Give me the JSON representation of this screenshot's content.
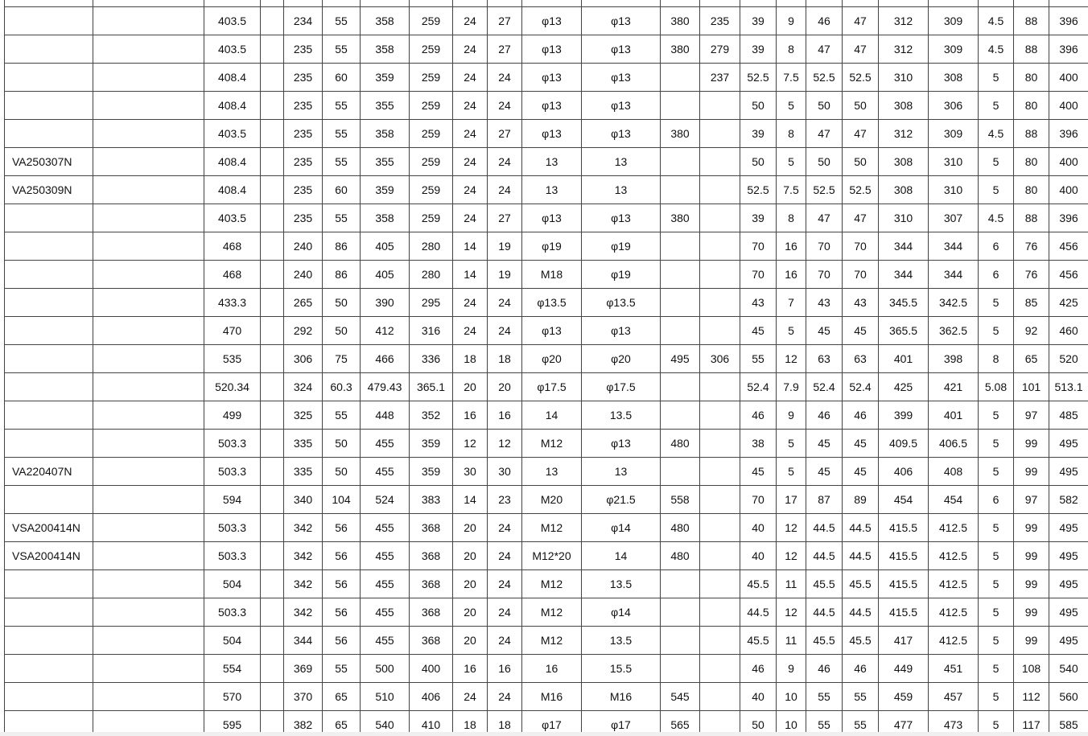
{
  "table": {
    "rows": [
      [
        null,
        null,
        "403.5",
        null,
        "234",
        "55",
        "358",
        "259",
        "24",
        "27",
        "φ13",
        "φ13",
        "380",
        "235",
        "39",
        "9",
        "46",
        "47",
        "312",
        "309",
        "4.5",
        "88",
        "396"
      ],
      [
        null,
        null,
        "403.5",
        null,
        "235",
        "55",
        "358",
        "259",
        "24",
        "27",
        "φ13",
        "φ13",
        "380",
        "279",
        "39",
        "8",
        "47",
        "47",
        "312",
        "309",
        "4.5",
        "88",
        "396"
      ],
      [
        null,
        null,
        "408.4",
        null,
        "235",
        "60",
        "359",
        "259",
        "24",
        "24",
        "φ13",
        "φ13",
        null,
        "237",
        "52.5",
        "7.5",
        "52.5",
        "52.5",
        "310",
        "308",
        "5",
        "80",
        "400"
      ],
      [
        null,
        null,
        "408.4",
        null,
        "235",
        "55",
        "355",
        "259",
        "24",
        "24",
        "φ13",
        "φ13",
        null,
        null,
        "50",
        "5",
        "50",
        "50",
        "308",
        "306",
        "5",
        "80",
        "400"
      ],
      [
        null,
        null,
        "403.5",
        null,
        "235",
        "55",
        "358",
        "259",
        "24",
        "27",
        "φ13",
        "φ13",
        "380",
        null,
        "39",
        "8",
        "47",
        "47",
        "312",
        "309",
        "4.5",
        "88",
        "396"
      ],
      [
        "VA250307N",
        null,
        "408.4",
        null,
        "235",
        "55",
        "355",
        "259",
        "24",
        "24",
        "13",
        "13",
        null,
        null,
        "50",
        "5",
        "50",
        "50",
        "308",
        "310",
        "5",
        "80",
        "400"
      ],
      [
        "VA250309N",
        null,
        "408.4",
        null,
        "235",
        "60",
        "359",
        "259",
        "24",
        "24",
        "13",
        "13",
        null,
        null,
        "52.5",
        "7.5",
        "52.5",
        "52.5",
        "308",
        "310",
        "5",
        "80",
        "400"
      ],
      [
        null,
        null,
        "403.5",
        null,
        "235",
        "55",
        "358",
        "259",
        "24",
        "27",
        "φ13",
        "φ13",
        "380",
        null,
        "39",
        "8",
        "47",
        "47",
        "310",
        "307",
        "4.5",
        "88",
        "396"
      ],
      [
        null,
        null,
        "468",
        null,
        "240",
        "86",
        "405",
        "280",
        "14",
        "19",
        "φ19",
        "φ19",
        null,
        null,
        "70",
        "16",
        "70",
        "70",
        "344",
        "344",
        "6",
        "76",
        "456"
      ],
      [
        null,
        null,
        "468",
        null,
        "240",
        "86",
        "405",
        "280",
        "14",
        "19",
        "M18",
        "φ19",
        null,
        null,
        "70",
        "16",
        "70",
        "70",
        "344",
        "344",
        "6",
        "76",
        "456"
      ],
      [
        null,
        null,
        "433.3",
        null,
        "265",
        "50",
        "390",
        "295",
        "24",
        "24",
        "φ13.5",
        "φ13.5",
        null,
        null,
        "43",
        "7",
        "43",
        "43",
        "345.5",
        "342.5",
        "5",
        "85",
        "425"
      ],
      [
        null,
        null,
        "470",
        null,
        "292",
        "50",
        "412",
        "316",
        "24",
        "24",
        "φ13",
        "φ13",
        null,
        null,
        "45",
        "5",
        "45",
        "45",
        "365.5",
        "362.5",
        "5",
        "92",
        "460"
      ],
      [
        null,
        null,
        "535",
        null,
        "306",
        "75",
        "466",
        "336",
        "18",
        "18",
        "φ20",
        "φ20",
        "495",
        "306",
        "55",
        "12",
        "63",
        "63",
        "401",
        "398",
        "8",
        "65",
        "520"
      ],
      [
        null,
        null,
        "520.34",
        null,
        "324",
        "60.3",
        "479.43",
        "365.1",
        "20",
        "20",
        "φ17.5",
        "φ17.5",
        null,
        null,
        "52.4",
        "7.9",
        "52.4",
        "52.4",
        "425",
        "421",
        "5.08",
        "101",
        "513.1"
      ],
      [
        null,
        null,
        "499",
        null,
        "325",
        "55",
        "448",
        "352",
        "16",
        "16",
        "14",
        "13.5",
        null,
        null,
        "46",
        "9",
        "46",
        "46",
        "399",
        "401",
        "5",
        "97",
        "485"
      ],
      [
        null,
        null,
        "503.3",
        null,
        "335",
        "50",
        "455",
        "359",
        "12",
        "12",
        "M12",
        "φ13",
        "480",
        null,
        "38",
        "5",
        "45",
        "45",
        "409.5",
        "406.5",
        "5",
        "99",
        "495"
      ],
      [
        "VA220407N",
        null,
        "503.3",
        null,
        "335",
        "50",
        "455",
        "359",
        "30",
        "30",
        "13",
        "13",
        null,
        null,
        "45",
        "5",
        "45",
        "45",
        "406",
        "408",
        "5",
        "99",
        "495"
      ],
      [
        null,
        null,
        "594",
        null,
        "340",
        "104",
        "524",
        "383",
        "14",
        "23",
        "M20",
        "φ21.5",
        "558",
        null,
        "70",
        "17",
        "87",
        "89",
        "454",
        "454",
        "6",
        "97",
        "582"
      ],
      [
        "VSA200414N",
        null,
        "503.3",
        null,
        "342",
        "56",
        "455",
        "368",
        "20",
        "24",
        "M12",
        "φ14",
        "480",
        null,
        "40",
        "12",
        "44.5",
        "44.5",
        "415.5",
        "412.5",
        "5",
        "99",
        "495"
      ],
      [
        "VSA200414N",
        null,
        "503.3",
        null,
        "342",
        "56",
        "455",
        "368",
        "20",
        "24",
        "M12*20",
        "14",
        "480",
        null,
        "40",
        "12",
        "44.5",
        "44.5",
        "415.5",
        "412.5",
        "5",
        "99",
        "495"
      ],
      [
        null,
        null,
        "504",
        null,
        "342",
        "56",
        "455",
        "368",
        "20",
        "24",
        "M12",
        "13.5",
        null,
        null,
        "45.5",
        "11",
        "45.5",
        "45.5",
        "415.5",
        "412.5",
        "5",
        "99",
        "495"
      ],
      [
        null,
        null,
        "503.3",
        null,
        "342",
        "56",
        "455",
        "368",
        "20",
        "24",
        "M12",
        "φ14",
        null,
        null,
        "44.5",
        "12",
        "44.5",
        "44.5",
        "415.5",
        "412.5",
        "5",
        "99",
        "495"
      ],
      [
        null,
        null,
        "504",
        null,
        "344",
        "56",
        "455",
        "368",
        "20",
        "24",
        "M12",
        "13.5",
        null,
        null,
        "45.5",
        "11",
        "45.5",
        "45.5",
        "417",
        "412.5",
        "5",
        "99",
        "495"
      ],
      [
        null,
        null,
        "554",
        null,
        "369",
        "55",
        "500",
        "400",
        "16",
        "16",
        "16",
        "15.5",
        null,
        null,
        "46",
        "9",
        "46",
        "46",
        "449",
        "451",
        "5",
        "108",
        "540"
      ],
      [
        null,
        null,
        "570",
        null,
        "370",
        "65",
        "510",
        "406",
        "24",
        "24",
        "M16",
        "M16",
        "545",
        null,
        "40",
        "10",
        "55",
        "55",
        "459",
        "457",
        "5",
        "112",
        "560"
      ],
      [
        null,
        null,
        "595",
        null,
        "382",
        "65",
        "540",
        "410",
        "18",
        "18",
        "φ17",
        "φ17",
        "565",
        null,
        "50",
        "10",
        "55",
        "55",
        "477",
        "473",
        "5",
        "117",
        "585"
      ]
    ]
  }
}
